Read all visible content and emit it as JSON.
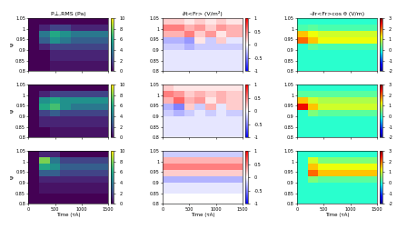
{
  "chart_data": [
    {
      "type": "heatmap",
      "title": "P⊥,RMS (Pa)",
      "ylabel": "ψ",
      "tick_labels": "y",
      "color": "viridis",
      "x_edges": [
        0,
        200,
        400,
        600,
        800,
        1000,
        1200,
        1500
      ],
      "y_edges": [
        0.8,
        0.85,
        0.9,
        0.93,
        0.96,
        0.99,
        1.02,
        1.05
      ],
      "xlim": [
        0,
        1500
      ],
      "ylim": [
        0.8,
        1.05
      ],
      "xticks": [
        0,
        500,
        1000,
        1500
      ],
      "yticks": [
        0.8,
        0.85,
        0.9,
        0.95,
        1,
        1.05
      ],
      "colorbar_range": [
        0,
        10
      ],
      "colorbar_ticks": [
        0,
        2,
        4,
        6,
        8,
        10
      ],
      "cells": [
        [
          0,
          0,
          0.5,
          0.5,
          0.5,
          0.5,
          0.5
        ],
        [
          0,
          0,
          1,
          1,
          1,
          1,
          1
        ],
        [
          0,
          1,
          2,
          2,
          2,
          2,
          2
        ],
        [
          0,
          3,
          5,
          4,
          3,
          3,
          3
        ],
        [
          0,
          4,
          6,
          5,
          4,
          4,
          4
        ],
        [
          0,
          1,
          2,
          2,
          1,
          1,
          1
        ],
        [
          0,
          0,
          0,
          0,
          0,
          0,
          0
        ]
      ]
    },
    {
      "type": "heatmap",
      "title": "∂t<Fr> (V/m²)",
      "tick_labels": "y",
      "color": "bwr",
      "x_edges": [
        0,
        200,
        400,
        600,
        800,
        1000,
        1200,
        1500
      ],
      "y_edges": [
        0.8,
        0.85,
        0.9,
        0.93,
        0.96,
        0.99,
        1.02,
        1.05
      ],
      "xlim": [
        0,
        1500
      ],
      "ylim": [
        0.8,
        1.05
      ],
      "xticks": [
        0,
        500,
        1000,
        1500
      ],
      "yticks": [
        0.8,
        0.85,
        0.9,
        0.95,
        1,
        1.05
      ],
      "colorbar_range": [
        -1,
        1
      ],
      "colorbar_ticks": [
        -1,
        -0.5,
        0,
        0.5,
        1
      ],
      "cells": [
        [
          -0.1,
          -0.1,
          -0.1,
          -0.1,
          -0.1,
          -0.1,
          -0.1
        ],
        [
          -0.1,
          -0.1,
          -0.1,
          -0.1,
          -0.1,
          -0.1,
          -0.1
        ],
        [
          -0.2,
          -0.2,
          -0.3,
          -0.2,
          -0.2,
          -0.2,
          -0.2
        ],
        [
          -0.3,
          -0.3,
          -0.4,
          0.1,
          -0.2,
          0.2,
          -0.1
        ],
        [
          0.3,
          0.3,
          0.5,
          0.2,
          0.4,
          0.1,
          0.3
        ],
        [
          0.5,
          0.5,
          0.3,
          0.4,
          0.2,
          0.4,
          0.3
        ],
        [
          0.2,
          0.2,
          0.1,
          0.2,
          0.1,
          0.2,
          0.1
        ]
      ]
    },
    {
      "type": "heatmap",
      "title": "-∂r<Fr>cos θ (V/m)",
      "tick_labels": "y",
      "color": "jet",
      "x_edges": [
        0,
        200,
        400,
        600,
        800,
        1000,
        1200,
        1500
      ],
      "y_edges": [
        0.8,
        0.85,
        0.9,
        0.93,
        0.96,
        0.99,
        1.02,
        1.05
      ],
      "xlim": [
        0,
        1500
      ],
      "ylim": [
        0.8,
        1.05
      ],
      "xticks": [
        0,
        500,
        1000,
        1500
      ],
      "yticks": [
        0.8,
        0.85,
        0.9,
        0.95,
        1,
        1.05
      ],
      "colorbar_range": [
        -2,
        3
      ],
      "colorbar_ticks": [
        -2,
        -1,
        0,
        1,
        2,
        3
      ],
      "cells": [
        [
          0,
          0,
          0,
          0,
          0,
          0,
          0
        ],
        [
          0,
          0,
          0,
          0,
          0,
          0,
          0
        ],
        [
          0,
          0.3,
          0.2,
          0.2,
          0.2,
          0.2,
          0.2
        ],
        [
          2,
          1.5,
          1.2,
          1.2,
          1.2,
          1.2,
          1.2
        ],
        [
          1.5,
          1.2,
          1,
          1,
          1,
          1,
          1
        ],
        [
          0.2,
          0.3,
          0.2,
          0.2,
          0.2,
          0.2,
          0.2
        ],
        [
          0,
          0,
          0,
          0,
          0,
          0,
          0
        ]
      ]
    },
    {
      "type": "heatmap",
      "ylabel": "ψ",
      "tick_labels": "y",
      "color": "viridis",
      "x_edges": [
        0,
        200,
        400,
        600,
        800,
        1000,
        1200,
        1500
      ],
      "y_edges": [
        0.8,
        0.85,
        0.9,
        0.93,
        0.96,
        0.99,
        1.02,
        1.05
      ],
      "xlim": [
        0,
        1500
      ],
      "ylim": [
        0.8,
        1.05
      ],
      "xticks": [
        0,
        500,
        1000,
        1500
      ],
      "yticks": [
        0.8,
        0.85,
        0.9,
        0.95,
        1,
        1.05
      ],
      "colorbar_range": [
        0,
        10
      ],
      "colorbar_ticks": [
        0,
        2,
        4,
        6,
        8,
        10
      ],
      "cells": [
        [
          0,
          0,
          0.5,
          0.5,
          0.5,
          0.5,
          0.5
        ],
        [
          0,
          1,
          1,
          1,
          1,
          1,
          1
        ],
        [
          0,
          2,
          3,
          2,
          2,
          2,
          2
        ],
        [
          0,
          6,
          7,
          5,
          4,
          4,
          4
        ],
        [
          0,
          5,
          6,
          5,
          5,
          5,
          5
        ],
        [
          0,
          1,
          2,
          2,
          2,
          2,
          2
        ],
        [
          0,
          0,
          0,
          0,
          0,
          0,
          0
        ]
      ]
    },
    {
      "type": "heatmap",
      "tick_labels": "y",
      "color": "bwr",
      "x_edges": [
        0,
        200,
        400,
        600,
        800,
        1000,
        1200,
        1500
      ],
      "y_edges": [
        0.8,
        0.85,
        0.9,
        0.93,
        0.96,
        0.99,
        1.02,
        1.05
      ],
      "xlim": [
        0,
        1500
      ],
      "ylim": [
        0.8,
        1.05
      ],
      "xticks": [
        0,
        500,
        1000,
        1500
      ],
      "yticks": [
        0.8,
        0.85,
        0.9,
        0.95,
        1,
        1.05
      ],
      "colorbar_range": [
        -1,
        1
      ],
      "colorbar_ticks": [
        -1,
        -0.5,
        0,
        0.5,
        1
      ],
      "cells": [
        [
          -0.1,
          -0.1,
          -0.1,
          -0.1,
          -0.1,
          -0.1,
          -0.1
        ],
        [
          -0.1,
          -0.1,
          -0.1,
          -0.1,
          -0.1,
          -0.1,
          -0.1
        ],
        [
          -0.2,
          -0.3,
          -0.2,
          -0.1,
          -0.2,
          -0.1,
          -0.2
        ],
        [
          -0.3,
          -0.5,
          0.2,
          -0.2,
          0.3,
          -0.1,
          0.2
        ],
        [
          0.3,
          0.6,
          0.3,
          0.4,
          0.1,
          0.3,
          0.2
        ],
        [
          0.5,
          0.4,
          0.2,
          0.3,
          0.2,
          0.3,
          0.2
        ],
        [
          0.2,
          0.1,
          0.1,
          0.1,
          0.1,
          0.1,
          0.1
        ]
      ]
    },
    {
      "type": "heatmap",
      "tick_labels": "y",
      "color": "jet",
      "x_edges": [
        0,
        200,
        400,
        600,
        800,
        1000,
        1200,
        1500
      ],
      "y_edges": [
        0.8,
        0.85,
        0.9,
        0.93,
        0.96,
        0.99,
        1.02,
        1.05
      ],
      "xlim": [
        0,
        1500
      ],
      "ylim": [
        0.8,
        1.05
      ],
      "xticks": [
        0,
        500,
        1000,
        1500
      ],
      "yticks": [
        0.8,
        0.85,
        0.9,
        0.95,
        1,
        1.05
      ],
      "colorbar_range": [
        -2,
        3
      ],
      "colorbar_ticks": [
        -2,
        -1,
        0,
        1,
        2,
        3
      ],
      "cells": [
        [
          0,
          0,
          0,
          0,
          0,
          0,
          0
        ],
        [
          0,
          0,
          0,
          0,
          0,
          0,
          0
        ],
        [
          0,
          0.5,
          0.3,
          0.3,
          0.3,
          0.3,
          0.3
        ],
        [
          2.5,
          1.5,
          1,
          1,
          1,
          1,
          1
        ],
        [
          1.5,
          1,
          0.8,
          0.8,
          0.8,
          0.8,
          0.8
        ],
        [
          0.3,
          0.3,
          0.3,
          0.3,
          0.3,
          0.3,
          0.3
        ],
        [
          0,
          0,
          0,
          0,
          0,
          0,
          0
        ]
      ]
    },
    {
      "type": "heatmap",
      "xlabel": "Time (τA)",
      "ylabel": "ψ",
      "color": "viridis",
      "x_edges": [
        0,
        200,
        400,
        600,
        800,
        1000,
        1200,
        1500
      ],
      "y_edges": [
        0.8,
        0.85,
        0.9,
        0.93,
        0.96,
        0.99,
        1.02,
        1.05
      ],
      "xlim": [
        0,
        1500
      ],
      "ylim": [
        0.8,
        1.05
      ],
      "xticks": [
        0,
        500,
        1000,
        1500
      ],
      "yticks": [
        0.8,
        0.85,
        0.9,
        0.95,
        1,
        1.05
      ],
      "colorbar_range": [
        0,
        10
      ],
      "colorbar_ticks": [
        0,
        2,
        4,
        6,
        8,
        10
      ],
      "cells": [
        [
          0,
          0,
          0,
          0,
          0,
          0,
          0
        ],
        [
          0,
          0.5,
          0.5,
          0.5,
          0.5,
          0.5,
          0.5
        ],
        [
          0,
          1,
          1,
          1,
          1,
          1,
          1
        ],
        [
          0,
          3,
          3,
          2,
          2,
          2,
          2
        ],
        [
          0,
          6,
          5,
          3,
          3,
          3,
          3
        ],
        [
          0,
          8,
          4,
          2,
          2,
          2,
          2
        ],
        [
          0,
          1,
          1,
          0,
          0,
          0,
          0
        ]
      ]
    },
    {
      "type": "heatmap",
      "xlabel": "Time (τA)",
      "color": "bwr",
      "x_edges": [
        0,
        200,
        400,
        600,
        800,
        1000,
        1200,
        1500
      ],
      "y_edges": [
        0.8,
        0.85,
        0.9,
        0.93,
        0.96,
        0.99,
        1.02,
        1.05
      ],
      "xlim": [
        0,
        1500
      ],
      "ylim": [
        0.8,
        1.05
      ],
      "xticks": [
        0,
        500,
        1000,
        1500
      ],
      "yticks": [
        0.8,
        0.85,
        0.9,
        0.95,
        1,
        1.05
      ],
      "colorbar_range": [
        -1,
        1
      ],
      "colorbar_ticks": [
        -1,
        -0.5,
        0,
        0.5,
        1
      ],
      "cells": [
        [
          0,
          0,
          0,
          0,
          0,
          0,
          0
        ],
        [
          -0.1,
          -0.1,
          -0.1,
          -0.1,
          -0.1,
          -0.1,
          -0.1
        ],
        [
          -0.3,
          -0.3,
          -0.3,
          -0.3,
          -0.3,
          -0.3,
          -0.3
        ],
        [
          0.2,
          0.2,
          0.2,
          0.2,
          0.2,
          0.2,
          0.2
        ],
        [
          0.5,
          0.5,
          0.5,
          0.5,
          0.5,
          0.5,
          0.5
        ],
        [
          0.3,
          0.3,
          0.3,
          0.3,
          0.3,
          0.3,
          0.3
        ],
        [
          -0.2,
          -0.2,
          -0.2,
          -0.2,
          -0.2,
          -0.2,
          -0.2
        ]
      ]
    },
    {
      "type": "heatmap",
      "xlabel": "Time (τA)",
      "color": "jet",
      "x_edges": [
        0,
        200,
        400,
        600,
        800,
        1000,
        1200,
        1500
      ],
      "y_edges": [
        0.8,
        0.85,
        0.9,
        0.93,
        0.96,
        0.99,
        1.02,
        1.05
      ],
      "xlim": [
        0,
        1500
      ],
      "ylim": [
        0.8,
        1.05
      ],
      "xticks": [
        0,
        500,
        1000,
        1500
      ],
      "yticks": [
        0.8,
        0.85,
        0.9,
        0.95,
        1,
        1.05
      ],
      "colorbar_range": [
        -2,
        3
      ],
      "colorbar_ticks": [
        -2,
        -1,
        0,
        1,
        2,
        3
      ],
      "cells": [
        [
          0,
          0,
          0,
          0,
          0,
          0,
          0
        ],
        [
          0,
          0,
          0,
          0,
          0,
          0,
          0
        ],
        [
          0,
          0.5,
          0.3,
          0.3,
          0.3,
          0.3,
          0.3
        ],
        [
          0,
          2,
          1.5,
          1.5,
          1.5,
          1.5,
          1.5
        ],
        [
          0,
          1.5,
          1.2,
          1.2,
          1.2,
          1.2,
          1.2
        ],
        [
          0,
          1,
          0.5,
          0.5,
          0.5,
          0.5,
          0.5
        ],
        [
          0,
          0,
          0,
          0,
          0,
          0,
          0
        ]
      ]
    }
  ]
}
